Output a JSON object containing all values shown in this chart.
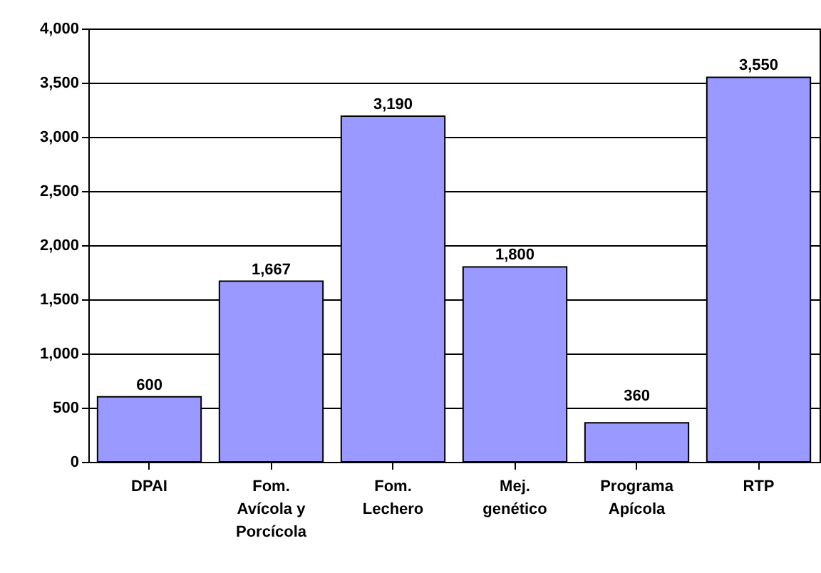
{
  "chart_data": {
    "type": "bar",
    "categories": [
      "DPAI",
      "Fom. Avícola y Porcícola",
      "Fom. Lechero",
      "Mej. genético",
      "Programa Apícola",
      "RTP"
    ],
    "values": [
      600,
      1667,
      3190,
      1800,
      360,
      3550
    ],
    "value_labels": [
      "600",
      "1,667",
      "3,190",
      "1,800",
      "360",
      "3,550"
    ],
    "color": "#9999ff",
    "ylim": [
      0,
      4000
    ],
    "yticks": [
      0,
      500,
      {
        "value": 1000,
        "label": "1,000"
      },
      {
        "value": 1500,
        "label": "1,500"
      },
      {
        "value": 2000,
        "label": "2,000"
      },
      {
        "value": 2500,
        "label": "2,500"
      },
      {
        "value": 3000,
        "label": "3,000"
      },
      {
        "value": 3500,
        "label": "3,500"
      },
      {
        "value": 4000,
        "label": "4,000"
      }
    ],
    "grid": "y"
  }
}
